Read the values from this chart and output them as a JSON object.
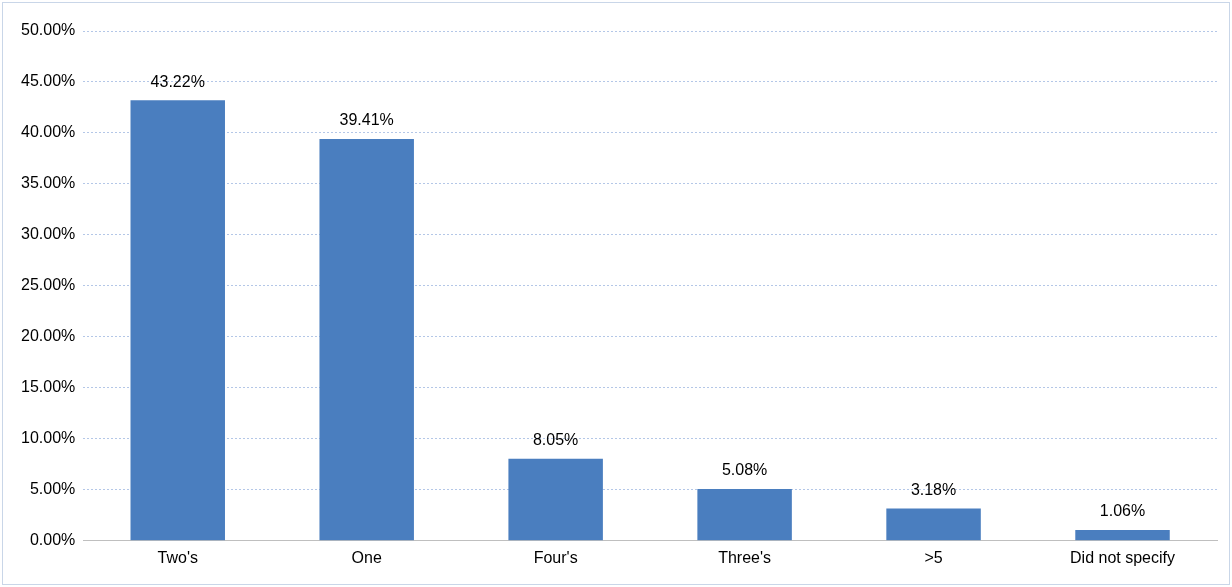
{
  "chart_data": {
    "type": "bar",
    "categories": [
      "Two's",
      "One",
      "Four's",
      "Three's",
      ">5",
      "Did not specify"
    ],
    "values": [
      43.22,
      39.41,
      8.05,
      5.08,
      3.18,
      1.06
    ],
    "value_labels": [
      "43.22%",
      "39.41%",
      "8.05%",
      "5.08%",
      "3.18%",
      "1.06%"
    ],
    "color": "#4a7ebf",
    "ylim": [
      0,
      50
    ],
    "yticks": [
      {
        "value": 0,
        "label": "0.00%"
      },
      {
        "value": 5,
        "label": "5.00%"
      },
      {
        "value": 10,
        "label": "10.00%"
      },
      {
        "value": 15,
        "label": "15.00%"
      },
      {
        "value": 20,
        "label": "20.00%"
      },
      {
        "value": 25,
        "label": "25.00%"
      },
      {
        "value": 30,
        "label": "30.00%"
      },
      {
        "value": 35,
        "label": "35.00%"
      },
      {
        "value": 40,
        "label": "40.00%"
      },
      {
        "value": 45,
        "label": "45.00%"
      },
      {
        "value": 50,
        "label": "50.00%"
      }
    ],
    "grid": "y"
  }
}
